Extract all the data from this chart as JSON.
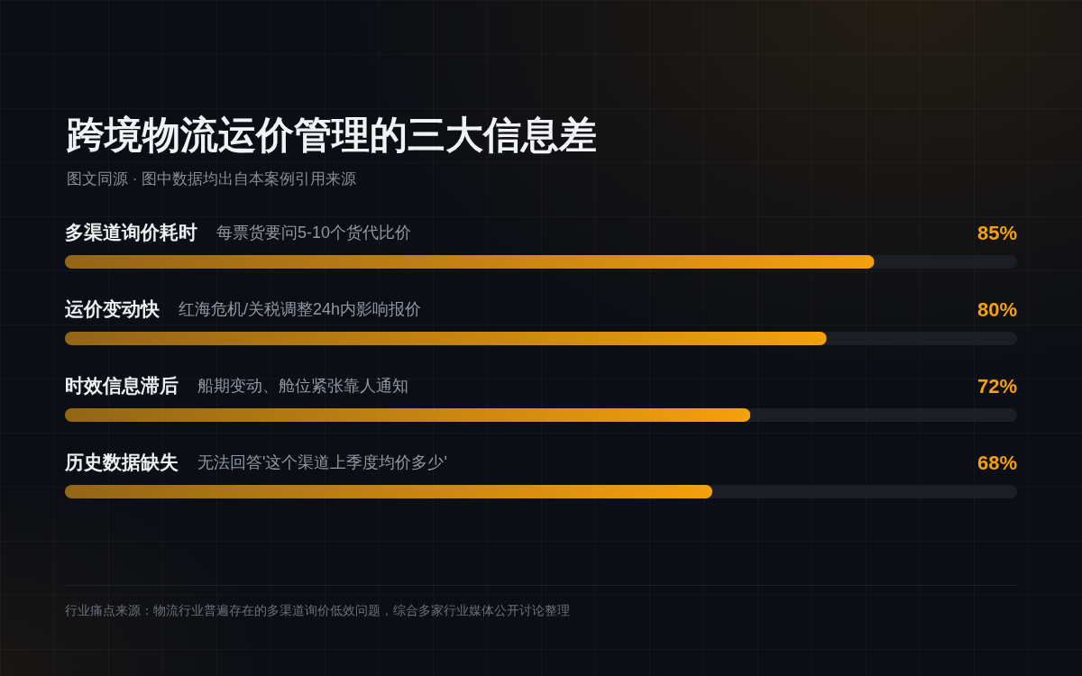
{
  "chart_data": {
    "type": "bar",
    "orientation": "horizontal",
    "title": "跨境物流运价管理的三大信息差",
    "subtitle": "图文同源 · 图中数据均出自本案例引用来源",
    "categories": [
      "多渠道询价耗时",
      "运价变动快",
      "时效信息滞后",
      "历史数据缺失"
    ],
    "values": [
      85,
      80,
      72,
      68
    ],
    "color": "#f5a00c",
    "value_labels": [
      "85%",
      "80%",
      "72%",
      "68%"
    ],
    "xlim": [
      0,
      100
    ],
    "tick_labels": "y",
    "annotations": [
      "每票货要问5-10个货代比价",
      "红海危机/关税调整24h内影响报价",
      "船期变动、舱位紧张靠人通知",
      "无法回答'这个渠道上季度均价多少'",
      "行业痛点来源：物流行业普遍存在的多渠道询价低效问题，综合多家行业媒体公开讨论整理"
    ]
  }
}
